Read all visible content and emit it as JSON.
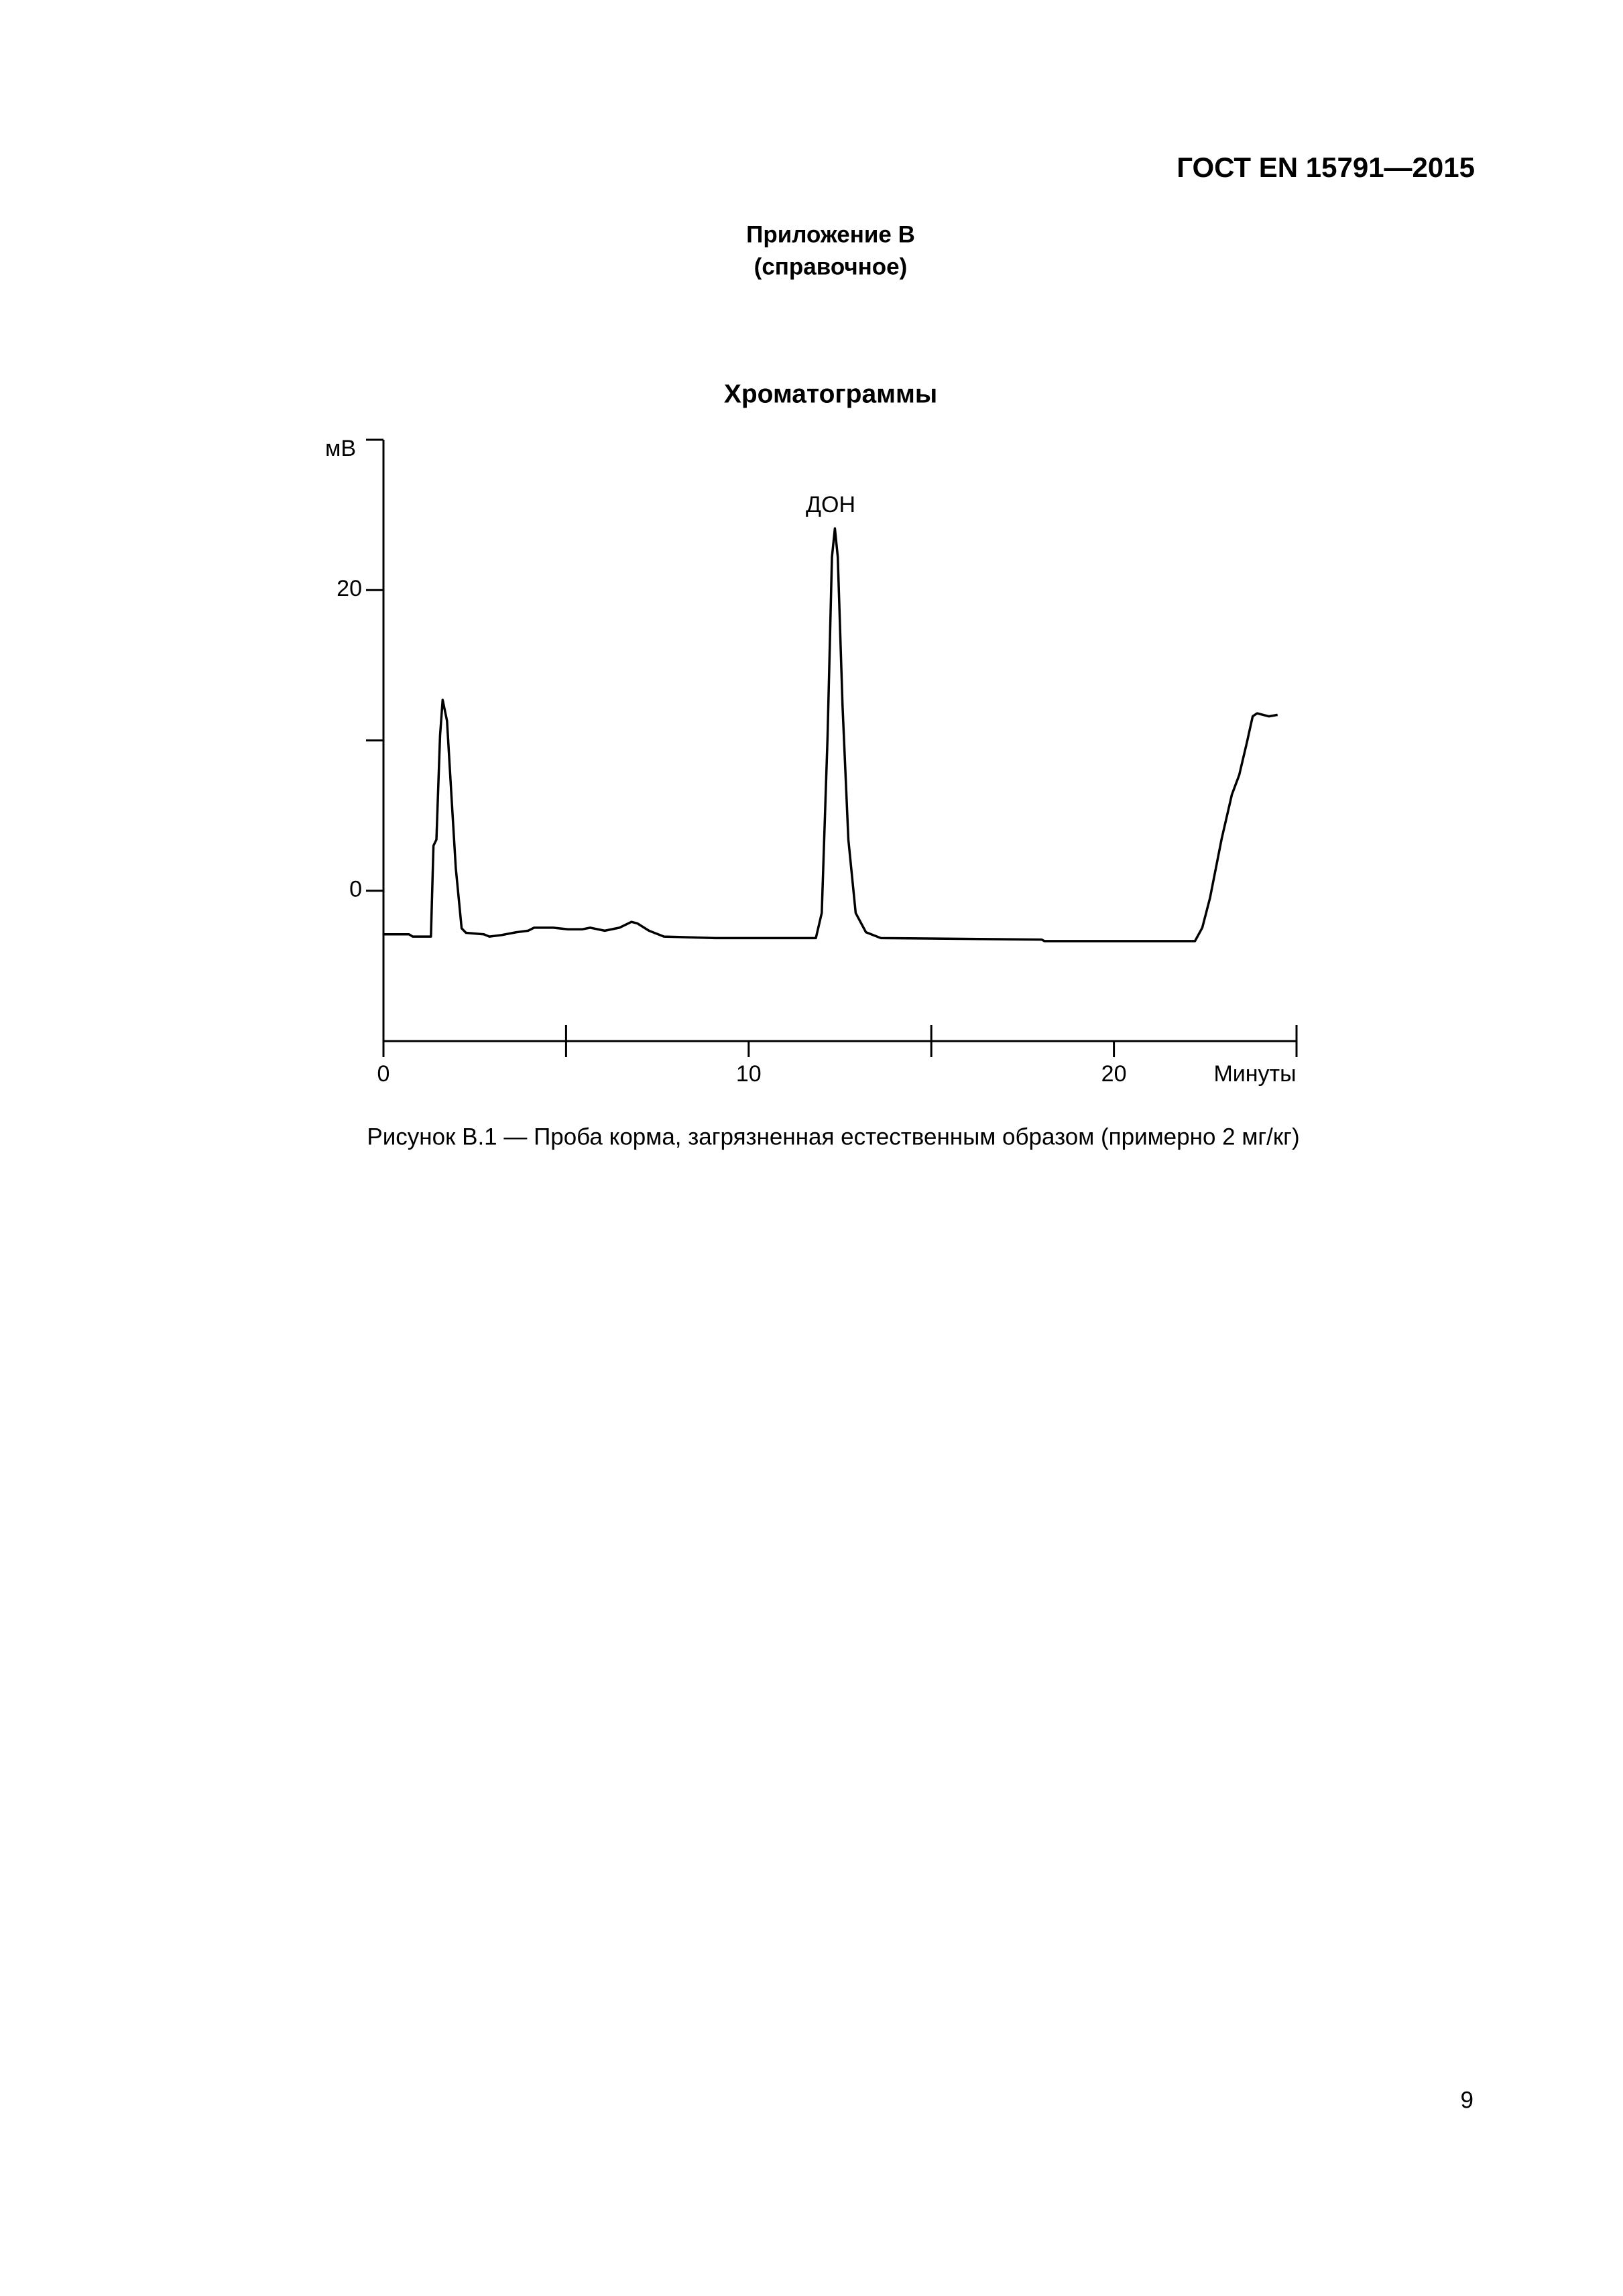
{
  "header": "ГОСТ EN 15791—2015",
  "appendix": {
    "title": "Приложение В",
    "subtitle": "(справочное)"
  },
  "chart_data": {
    "type": "line",
    "title": "Хроматограммы",
    "y_label": "мВ",
    "x_label": "Минуты",
    "annotation": "ДОН",
    "x": [
      0,
      0.7,
      0.8,
      1.3,
      1.37,
      1.45,
      1.55,
      1.62,
      1.74,
      1.86,
      1.98,
      2.14,
      2.26,
      2.75,
      2.9,
      3.23,
      3.64,
      3.96,
      4.12,
      4.65,
      5.05,
      5.45,
      5.66,
      6.06,
      6.46,
      6.79,
      6.95,
      7.27,
      7.68,
      9.09,
      11.84,
      12.0,
      12.16,
      12.28,
      12.36,
      12.44,
      12.57,
      12.73,
      12.93,
      13.21,
      13.62,
      18.02,
      18.1,
      22.22,
      22.42,
      22.63,
      22.95,
      23.23,
      23.43,
      23.64,
      23.8,
      23.92,
      24.24,
      24.48
    ],
    "values": [
      -2.9,
      -2.9,
      -3.05,
      -3.05,
      3.0,
      3.4,
      10.3,
      12.7,
      11.3,
      6.4,
      1.5,
      -2.5,
      -2.8,
      -2.9,
      -3.05,
      -2.95,
      -2.76,
      -2.66,
      -2.46,
      -2.46,
      -2.56,
      -2.56,
      -2.46,
      -2.66,
      -2.46,
      -2.07,
      -2.17,
      -2.66,
      -3.05,
      -3.15,
      -3.15,
      -1.48,
      10.3,
      22.2,
      24.1,
      22.2,
      12.3,
      3.4,
      -1.48,
      -2.76,
      -3.15,
      -3.25,
      -3.35,
      -3.35,
      -2.46,
      -0.49,
      3.45,
      6.4,
      7.7,
      9.85,
      11.6,
      11.8,
      11.6,
      11.7
    ],
    "color": "#000000",
    "xlim": [
      0,
      25
    ],
    "xticks": [
      0,
      10,
      20
    ],
    "xminor_ticks": [
      5,
      15,
      25
    ],
    "ylim": [
      -10,
      30
    ],
    "yticks": [
      0,
      20
    ],
    "yminor_ticks": [
      10,
      30
    ]
  },
  "caption": "Рисунок В.1 — Проба корма, загрязненная естественным образом (примерно 2 мг/кг)",
  "page_number": "9"
}
